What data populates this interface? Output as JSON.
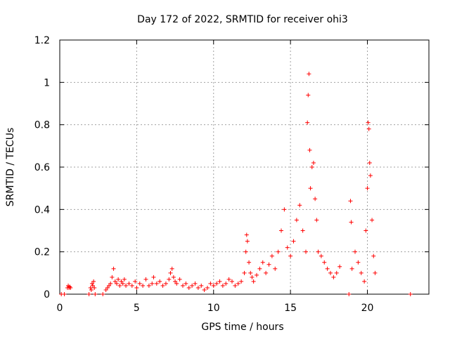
{
  "chart_data": {
    "type": "scatter",
    "title": "Day 172 of 2022, SRMTID for receiver ohi3",
    "xlabel": "GPS time / hours",
    "ylabel": "SRMTID / TECUs",
    "xlim": [
      0,
      24
    ],
    "ylim": [
      0,
      1.2
    ],
    "xticks": [
      0,
      5,
      10,
      15,
      20
    ],
    "yticks": [
      0,
      0.2,
      0.4,
      0.6,
      0.8,
      1,
      1.2
    ],
    "ytick_labels": [
      "0",
      "0.2",
      "0.4",
      "0.6",
      "0.8",
      "1",
      "1.2"
    ],
    "grid": true,
    "marker": "+",
    "series": [
      {
        "name": "SRMTID",
        "color": "#ff0000",
        "points": [
          [
            0.1,
            0.0
          ],
          [
            0.3,
            0.0
          ],
          [
            0.5,
            0.03
          ],
          [
            0.55,
            0.04
          ],
          [
            0.6,
            0.03
          ],
          [
            0.65,
            0.035
          ],
          [
            0.7,
            0.03
          ],
          [
            1.9,
            0.0
          ],
          [
            2.0,
            0.03
          ],
          [
            2.05,
            0.02
          ],
          [
            2.1,
            0.05
          ],
          [
            2.15,
            0.04
          ],
          [
            2.2,
            0.06
          ],
          [
            2.25,
            0.03
          ],
          [
            2.3,
            0.0
          ],
          [
            2.8,
            0.0
          ],
          [
            3.0,
            0.02
          ],
          [
            3.1,
            0.03
          ],
          [
            3.2,
            0.04
          ],
          [
            3.3,
            0.05
          ],
          [
            3.4,
            0.08
          ],
          [
            3.5,
            0.12
          ],
          [
            3.6,
            0.06
          ],
          [
            3.7,
            0.05
          ],
          [
            3.8,
            0.07
          ],
          [
            3.9,
            0.04
          ],
          [
            4.0,
            0.06
          ],
          [
            4.1,
            0.05
          ],
          [
            4.2,
            0.07
          ],
          [
            4.3,
            0.04
          ],
          [
            4.5,
            0.05
          ],
          [
            4.7,
            0.04
          ],
          [
            4.9,
            0.06
          ],
          [
            5.0,
            0.03
          ],
          [
            5.2,
            0.05
          ],
          [
            5.4,
            0.04
          ],
          [
            5.6,
            0.07
          ],
          [
            5.8,
            0.04
          ],
          [
            6.0,
            0.05
          ],
          [
            6.1,
            0.08
          ],
          [
            6.3,
            0.05
          ],
          [
            6.5,
            0.06
          ],
          [
            6.7,
            0.04
          ],
          [
            6.9,
            0.05
          ],
          [
            7.1,
            0.07
          ],
          [
            7.2,
            0.1
          ],
          [
            7.3,
            0.12
          ],
          [
            7.4,
            0.08
          ],
          [
            7.5,
            0.06
          ],
          [
            7.6,
            0.05
          ],
          [
            7.8,
            0.07
          ],
          [
            8.0,
            0.04
          ],
          [
            8.2,
            0.05
          ],
          [
            8.4,
            0.03
          ],
          [
            8.6,
            0.04
          ],
          [
            8.8,
            0.05
          ],
          [
            9.0,
            0.03
          ],
          [
            9.2,
            0.04
          ],
          [
            9.4,
            0.02
          ],
          [
            9.6,
            0.03
          ],
          [
            9.8,
            0.05
          ],
          [
            10.0,
            0.04
          ],
          [
            10.2,
            0.05
          ],
          [
            10.4,
            0.06
          ],
          [
            10.6,
            0.04
          ],
          [
            10.8,
            0.05
          ],
          [
            11.0,
            0.07
          ],
          [
            11.2,
            0.06
          ],
          [
            11.4,
            0.04
          ],
          [
            11.6,
            0.05
          ],
          [
            11.8,
            0.06
          ],
          [
            12.0,
            0.1
          ],
          [
            12.1,
            0.2
          ],
          [
            12.15,
            0.28
          ],
          [
            12.2,
            0.25
          ],
          [
            12.3,
            0.15
          ],
          [
            12.4,
            0.1
          ],
          [
            12.5,
            0.08
          ],
          [
            12.6,
            0.06
          ],
          [
            12.8,
            0.09
          ],
          [
            13.0,
            0.12
          ],
          [
            13.2,
            0.15
          ],
          [
            13.4,
            0.1
          ],
          [
            13.6,
            0.14
          ],
          [
            13.8,
            0.18
          ],
          [
            14.0,
            0.12
          ],
          [
            14.2,
            0.2
          ],
          [
            14.4,
            0.3
          ],
          [
            14.6,
            0.4
          ],
          [
            14.8,
            0.22
          ],
          [
            15.0,
            0.18
          ],
          [
            15.2,
            0.25
          ],
          [
            15.4,
            0.35
          ],
          [
            15.6,
            0.42
          ],
          [
            15.8,
            0.3
          ],
          [
            16.0,
            0.2
          ],
          [
            16.1,
            0.81
          ],
          [
            16.15,
            0.94
          ],
          [
            16.2,
            1.04
          ],
          [
            16.25,
            0.68
          ],
          [
            16.3,
            0.5
          ],
          [
            16.4,
            0.6
          ],
          [
            16.5,
            0.62
          ],
          [
            16.6,
            0.45
          ],
          [
            16.7,
            0.35
          ],
          [
            16.8,
            0.2
          ],
          [
            17.0,
            0.18
          ],
          [
            17.2,
            0.15
          ],
          [
            17.4,
            0.12
          ],
          [
            17.6,
            0.1
          ],
          [
            17.8,
            0.08
          ],
          [
            18.0,
            0.1
          ],
          [
            18.2,
            0.13
          ],
          [
            18.8,
            0.0
          ],
          [
            18.9,
            0.44
          ],
          [
            18.95,
            0.34
          ],
          [
            19.0,
            0.12
          ],
          [
            19.2,
            0.2
          ],
          [
            19.4,
            0.15
          ],
          [
            19.6,
            0.1
          ],
          [
            19.8,
            0.06
          ],
          [
            19.9,
            0.3
          ],
          [
            20.0,
            0.5
          ],
          [
            20.05,
            0.81
          ],
          [
            20.1,
            0.78
          ],
          [
            20.15,
            0.62
          ],
          [
            20.2,
            0.56
          ],
          [
            20.3,
            0.35
          ],
          [
            20.4,
            0.18
          ],
          [
            20.5,
            0.1
          ],
          [
            22.8,
            0.0
          ]
        ]
      }
    ]
  }
}
